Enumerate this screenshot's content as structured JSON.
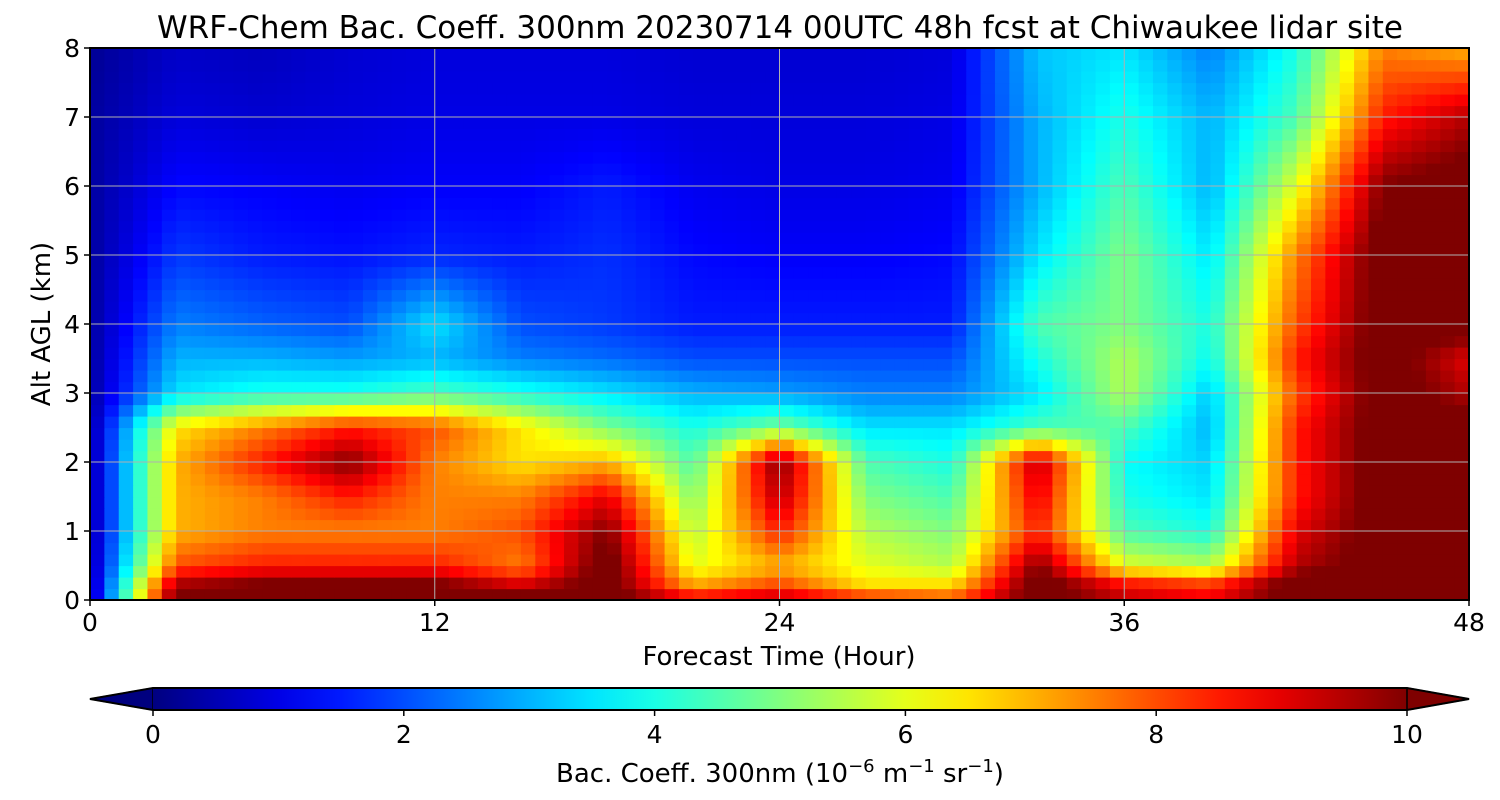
{
  "chart_data": {
    "type": "heatmap",
    "title": "WRF-Chem Bac. Coeff. 300nm  20230714 00UTC 48h fcst at Chiwaukee lidar site",
    "xlabel": "Forecast Time (Hour)",
    "ylabel": "Alt AGL (km)",
    "xlim": [
      0,
      48
    ],
    "ylim": [
      0,
      8
    ],
    "x_ticks": [
      "0",
      "12",
      "24",
      "36",
      "48"
    ],
    "y_ticks": [
      "0",
      "1",
      "2",
      "3",
      "4",
      "5",
      "6",
      "7",
      "8"
    ],
    "grid": true,
    "colorscale": "jet",
    "colorbar": {
      "label_main": "Bac. Coeff. 300nm  (10",
      "label_exp1": "−6",
      "label_mid": " m",
      "label_exp2": "−1",
      "label_end": " sr",
      "label_exp3": "−1",
      "label_close": ")",
      "range": [
        0,
        10
      ],
      "ticks": [
        "0",
        "2",
        "4",
        "6",
        "8",
        "10"
      ],
      "extend": "both",
      "under_color": "#00007f",
      "over_color": "#7f0000"
    },
    "x": [
      0,
      3,
      6,
      9,
      12,
      15,
      18,
      21,
      24,
      27,
      30,
      33,
      36,
      39,
      42,
      45,
      48
    ],
    "y": [
      0,
      0.25,
      0.5,
      1,
      1.5,
      2,
      2.5,
      3,
      3.5,
      4,
      5,
      6,
      7,
      8
    ],
    "z": [
      [
        0.3,
        10.5,
        10.5,
        10.5,
        10.5,
        10.5,
        10.5,
        9.0,
        9.5,
        8.5,
        8.0,
        10.5,
        9.5,
        9.0,
        10.5,
        10.5,
        10.5
      ],
      [
        0.3,
        9.5,
        10.0,
        10.0,
        10.0,
        9.0,
        10.5,
        7.0,
        8.0,
        6.5,
        6.5,
        10.5,
        8.5,
        8.0,
        10.5,
        10.5,
        10.5
      ],
      [
        0.3,
        8.0,
        8.5,
        8.5,
        8.5,
        7.5,
        10.5,
        6.0,
        7.0,
        6.0,
        5.5,
        10.0,
        6.0,
        5.5,
        9.5,
        10.5,
        10.5
      ],
      [
        0.3,
        7.0,
        7.5,
        7.5,
        7.5,
        8.0,
        10.0,
        5.5,
        8.5,
        5.5,
        5.0,
        8.5,
        4.5,
        4.0,
        9.0,
        10.5,
        10.5
      ],
      [
        0.3,
        7.0,
        7.5,
        8.5,
        7.5,
        7.5,
        9.0,
        5.0,
        9.5,
        5.0,
        4.5,
        9.0,
        4.0,
        3.5,
        8.5,
        10.5,
        10.5
      ],
      [
        0.3,
        7.0,
        8.5,
        10.0,
        7.5,
        6.5,
        7.0,
        4.5,
        10.0,
        4.5,
        4.0,
        9.5,
        3.8,
        3.3,
        8.5,
        10.5,
        10.5
      ],
      [
        0.3,
        6.5,
        7.5,
        8.5,
        8.0,
        6.5,
        5.0,
        4.0,
        5.0,
        3.5,
        3.5,
        4.5,
        4.5,
        3.0,
        8.5,
        10.5,
        10.5
      ],
      [
        0.3,
        3.5,
        4.0,
        4.0,
        4.5,
        4.0,
        3.5,
        3.0,
        2.8,
        2.5,
        2.5,
        3.5,
        5.5,
        3.2,
        8.0,
        10.5,
        9.5
      ],
      [
        0.3,
        3.0,
        3.0,
        2.8,
        3.0,
        2.5,
        2.3,
        2.0,
        2.0,
        2.0,
        2.0,
        4.0,
        5.5,
        3.8,
        8.5,
        10.5,
        9.0
      ],
      [
        0.3,
        2.5,
        2.2,
        2.0,
        3.5,
        2.0,
        1.8,
        1.5,
        1.5,
        1.5,
        1.5,
        4.5,
        5.0,
        4.0,
        8.0,
        10.5,
        10.5
      ],
      [
        0.3,
        1.8,
        1.5,
        1.4,
        1.6,
        1.5,
        1.7,
        1.3,
        1.2,
        1.2,
        1.3,
        3.5,
        5.0,
        3.5,
        7.5,
        10.5,
        10.5
      ],
      [
        0.3,
        1.3,
        1.2,
        1.1,
        1.2,
        1.2,
        1.5,
        1.1,
        1.0,
        1.0,
        1.1,
        3.0,
        4.5,
        3.0,
        6.0,
        10.0,
        10.5
      ],
      [
        0.3,
        0.9,
        0.8,
        0.9,
        1.0,
        1.0,
        1.0,
        0.9,
        0.9,
        0.9,
        1.0,
        3.0,
        4.0,
        3.0,
        4.5,
        8.5,
        9.5
      ],
      [
        0.2,
        0.7,
        0.6,
        0.8,
        0.9,
        0.9,
        0.9,
        0.8,
        0.8,
        0.8,
        0.9,
        3.2,
        3.5,
        2.5,
        4.0,
        7.5,
        7.0
      ]
    ]
  }
}
